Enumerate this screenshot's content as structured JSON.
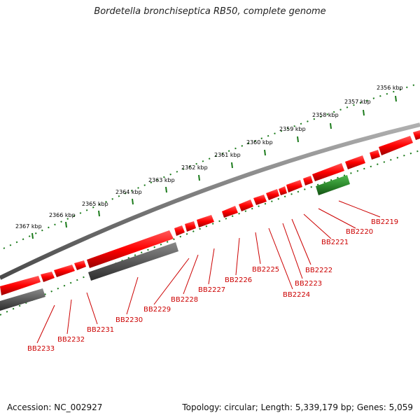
{
  "title": "Bordetella bronchiseptica RB50, complete genome",
  "footer": {
    "accession": "Accession: NC_002927",
    "summary": "Topology: circular; Length: 5,339,179 bp; Genes: 5,059"
  },
  "colors": {
    "forward_gene": "#ff0000",
    "reverse_gene": "#ff0000",
    "rna_gene": "#2e8b2e",
    "pseudo_gene": "#5a5a5a",
    "backbone": "#808080",
    "tick": "#1a7a1a",
    "label": "#cc0000"
  },
  "scale_labels": [
    "2356 kbp",
    "2357 kbp",
    "2358 kbp",
    "2359 kbp",
    "2360 kbp",
    "2361 kbp",
    "2362 kbp",
    "2363 kbp",
    "2364 kbp",
    "2365 kbp",
    "2366 kbp",
    "2367 kbp"
  ],
  "gene_labels": [
    "BB2219",
    "BB2220",
    "BB2221",
    "BB2222",
    "BB2223",
    "BB2224",
    "BB2225",
    "BB2226",
    "BB2227",
    "BB2228",
    "BB2229",
    "BB2230",
    "BB2231",
    "BB2232",
    "BB2233"
  ]
}
